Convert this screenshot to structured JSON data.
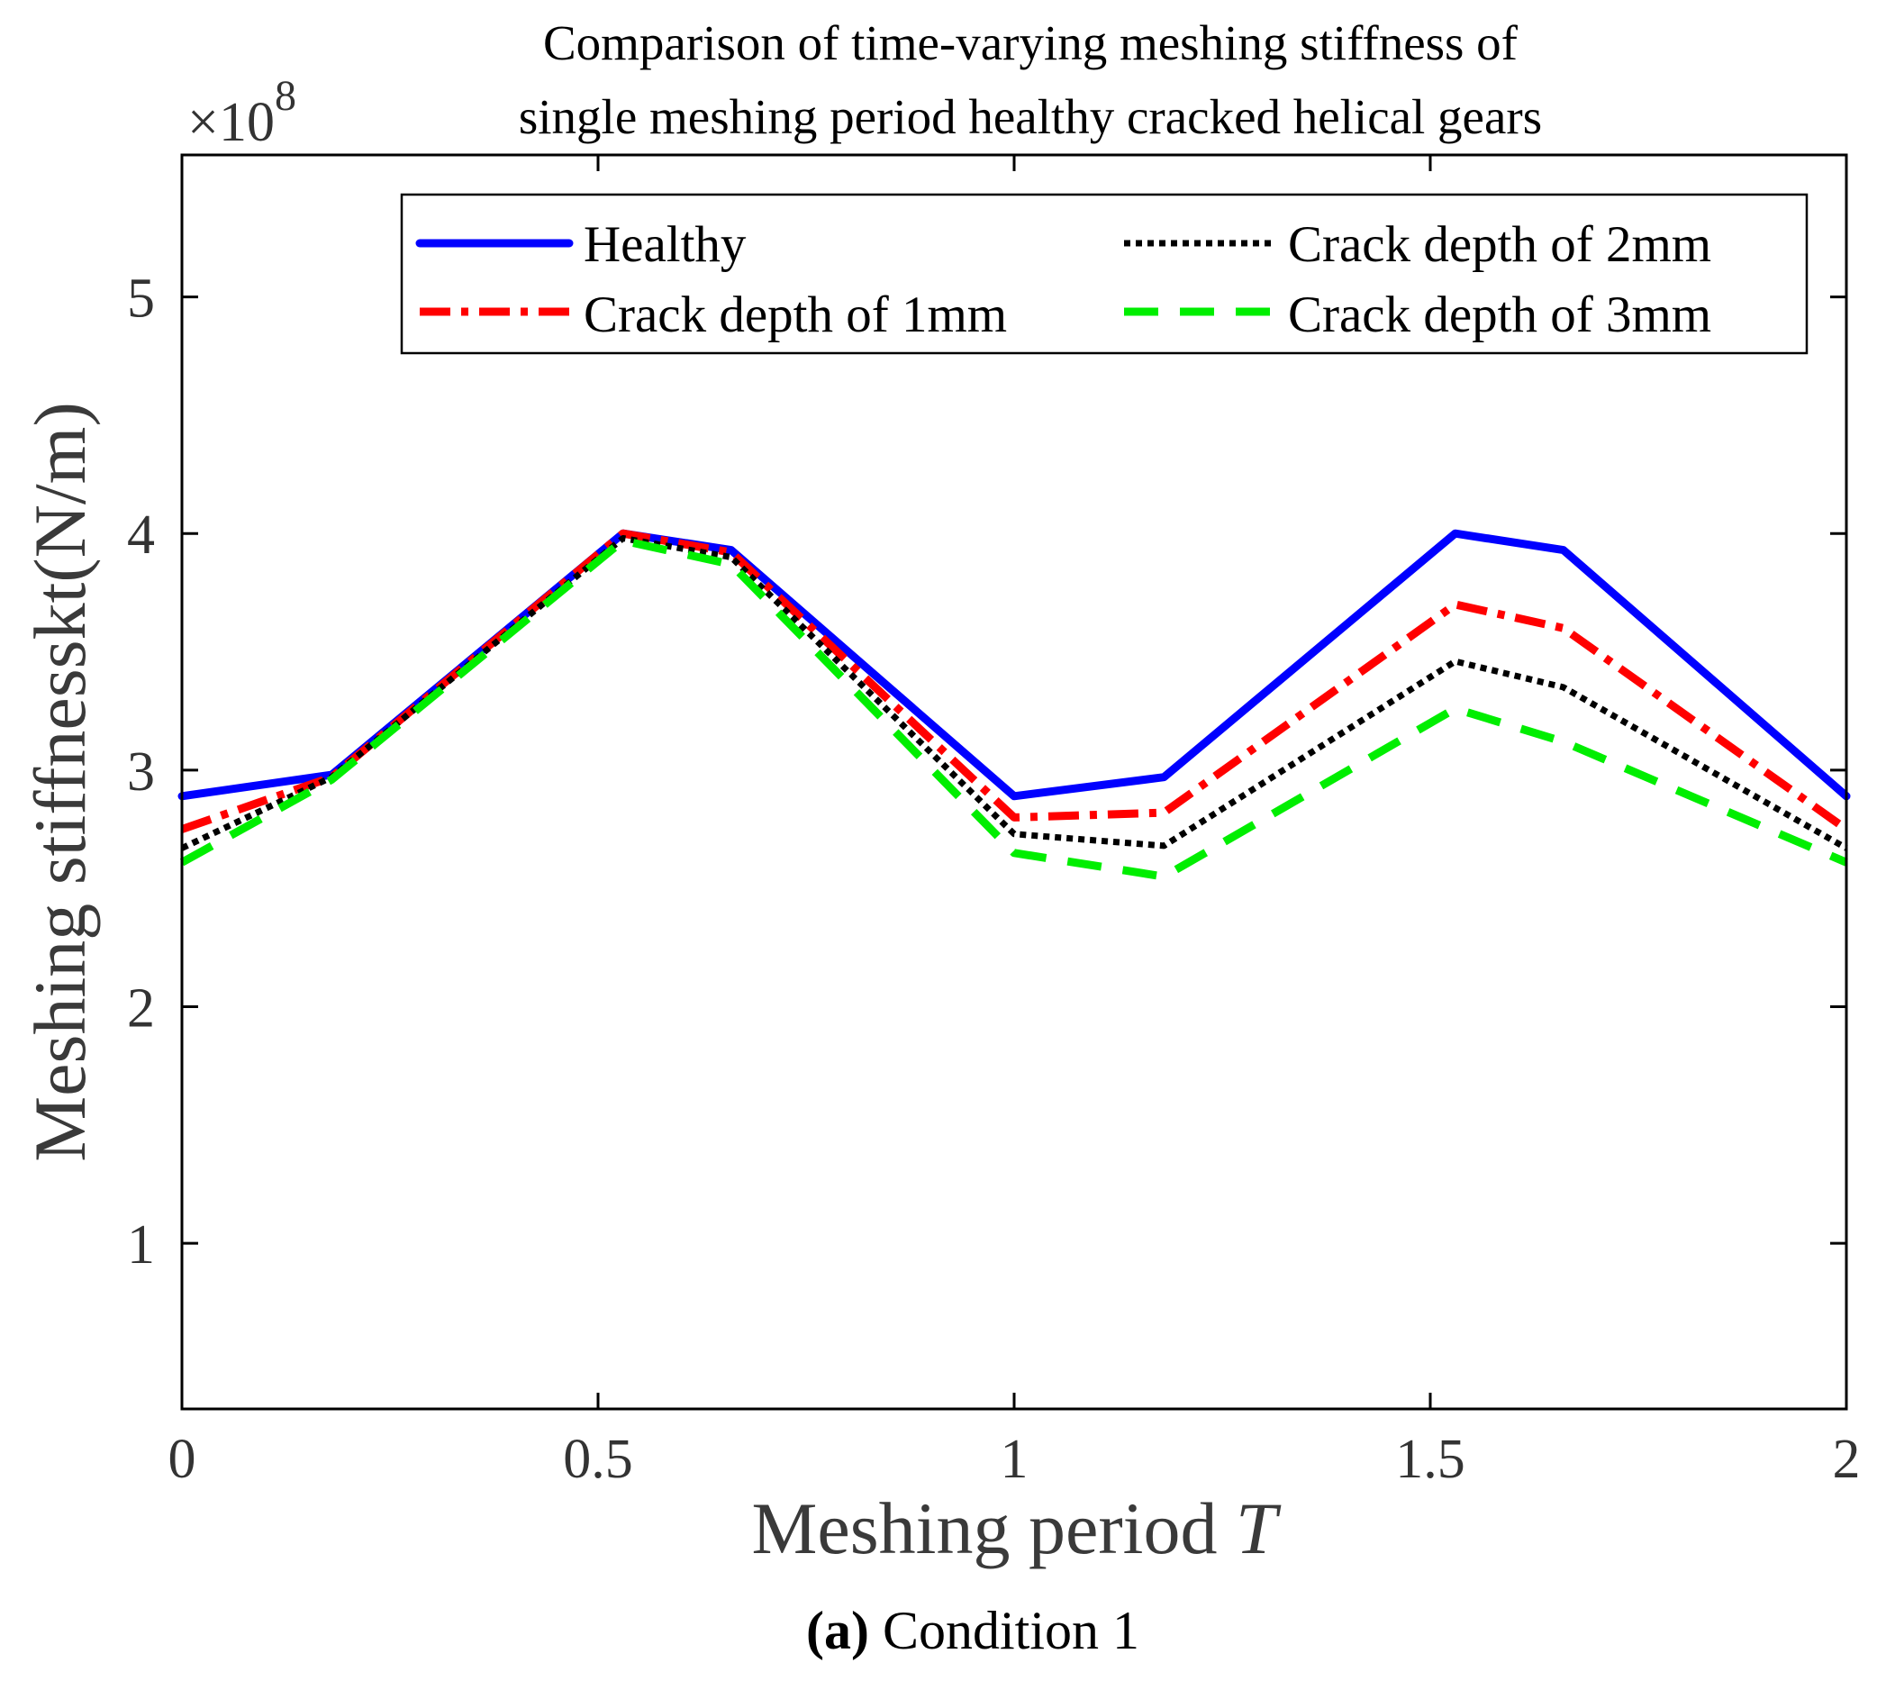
{
  "chart_data": {
    "type": "line",
    "title_lines": [
      "Comparison of time-varying meshing stiffness of",
      "single meshing period healthy cracked helical gears"
    ],
    "xlabel_main": "Meshing period",
    "xlabel_var": "T",
    "ylabel": "Meshing stiffnesskt(N/m)",
    "y_exponent_base": "×10",
    "y_exponent_power": "8",
    "caption_bold": "(a)",
    "caption_rest": " Condition 1",
    "xlim": [
      0,
      2
    ],
    "ylim": [
      0.3,
      5.6
    ],
    "x_ticks": [
      0,
      0.5,
      1,
      1.5,
      2
    ],
    "x_tick_labels": [
      "0",
      "0.5",
      "1",
      "1.5",
      "2"
    ],
    "y_ticks": [
      1,
      2,
      3,
      4,
      5
    ],
    "y_tick_labels": [
      "1",
      "2",
      "3",
      "4",
      "5"
    ],
    "x": [
      0,
      0.18,
      0.53,
      0.66,
      1.0,
      1.18,
      1.53,
      1.66,
      2.0
    ],
    "series": [
      {
        "name": "Healthy",
        "color": "#0000ff",
        "style": "solid",
        "values": [
          2.89,
          2.98,
          4.0,
          3.93,
          2.89,
          2.97,
          4.0,
          3.93,
          2.89
        ]
      },
      {
        "name": "Crack depth of 1mm",
        "color": "#ff0000",
        "style": "dashdot",
        "values": [
          2.75,
          2.97,
          4.0,
          3.92,
          2.8,
          2.82,
          3.7,
          3.6,
          2.75
        ]
      },
      {
        "name": "Crack depth of 2mm",
        "color": "#000000",
        "style": "dotted",
        "values": [
          2.67,
          2.97,
          3.98,
          3.9,
          2.73,
          2.68,
          3.46,
          3.35,
          2.67
        ]
      },
      {
        "name": "Crack depth of 3mm",
        "color": "#00ee00",
        "style": "dashed",
        "values": [
          2.61,
          2.96,
          3.97,
          3.87,
          2.65,
          2.55,
          3.26,
          3.12,
          2.61
        ]
      }
    ],
    "legend_position": "top-right",
    "grid": false
  }
}
